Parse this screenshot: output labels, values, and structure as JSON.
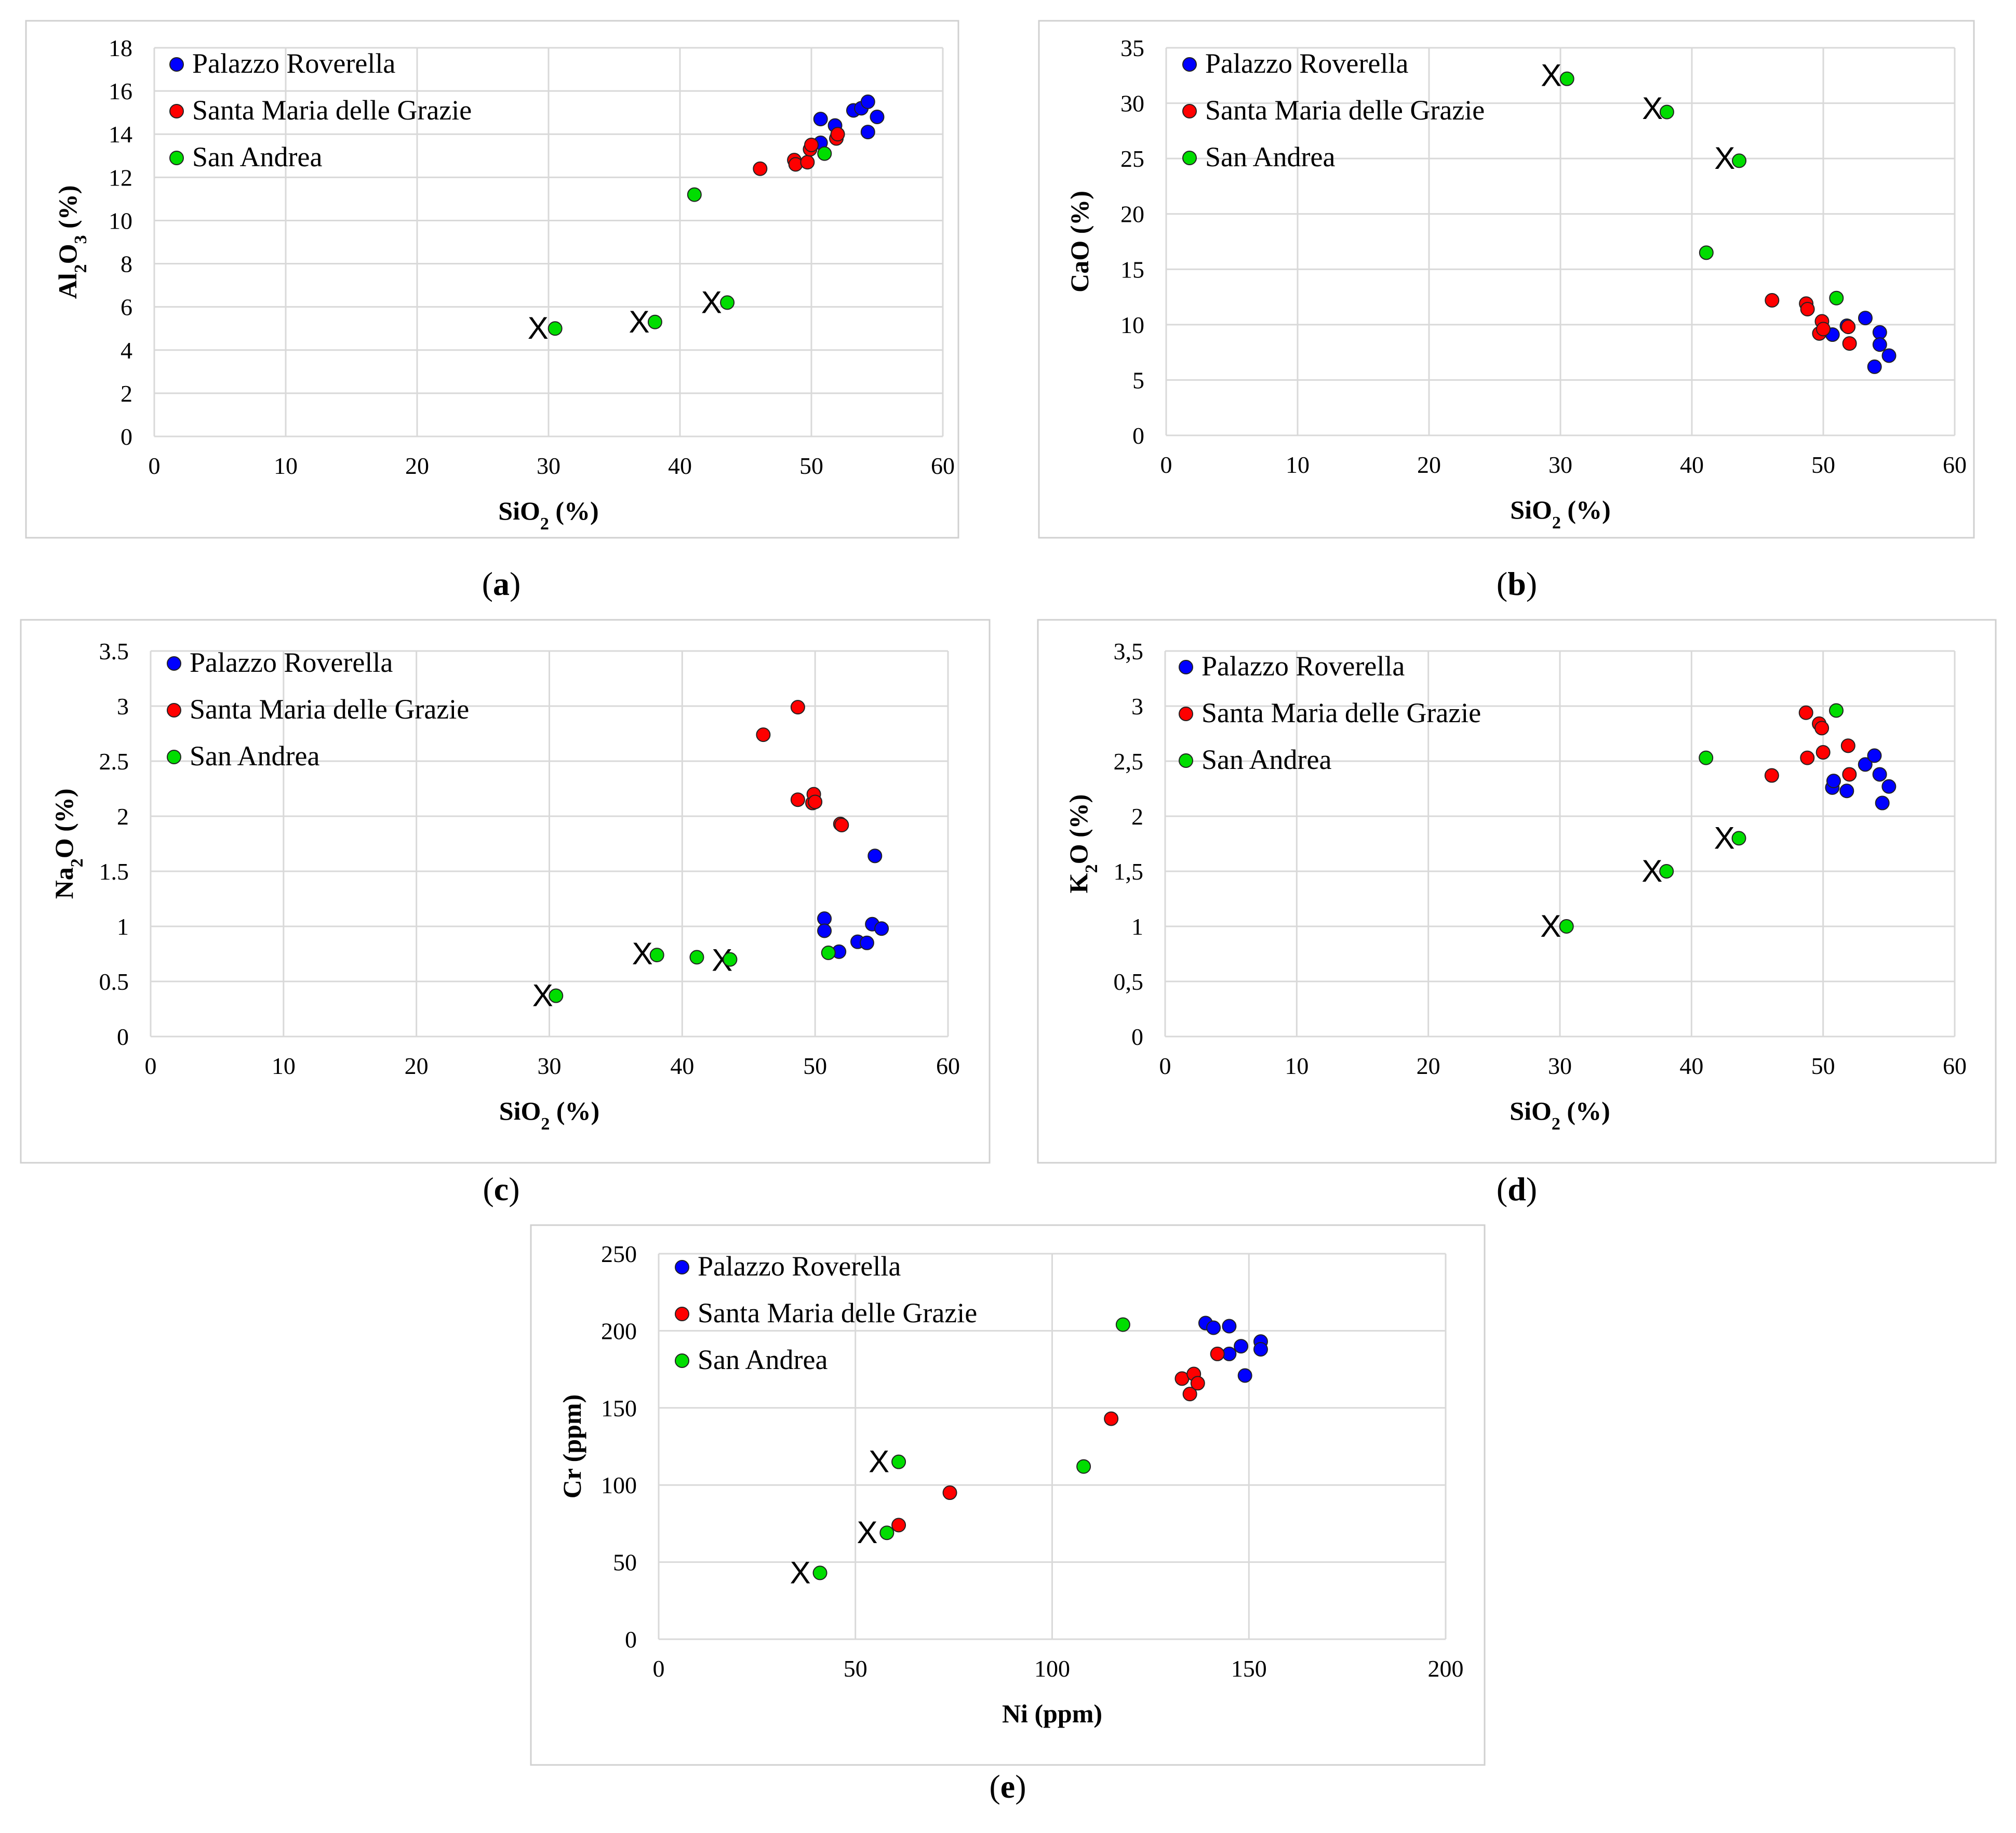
{
  "series_colors": {
    "Palazzo Roverella": "#0000ff",
    "Santa Maria delle Grazie": "#ff0000",
    "San Andrea": "#00dd00"
  },
  "chart_data": [
    {
      "type": "scatter",
      "caption_letter": "a",
      "xlabel": "SiO",
      "xlabel_sub": "2",
      "xlabel_tail": " (%)",
      "ylabel_parts": [
        [
          "Al",
          false
        ],
        [
          "2",
          true
        ],
        [
          "O",
          false
        ],
        [
          "3",
          true
        ],
        [
          " (%)",
          false
        ]
      ],
      "xlim": [
        0,
        60
      ],
      "ylim": [
        0,
        18
      ],
      "xticks": [
        "0",
        "10",
        "20",
        "30",
        "40",
        "50",
        "60"
      ],
      "yticks": [
        "0",
        "2",
        "4",
        "6",
        "8",
        "10",
        "12",
        "14",
        "16",
        "18"
      ],
      "legend": [
        "Palazzo Roverella",
        "Santa Maria delle Grazie",
        "San Andrea"
      ],
      "series": [
        {
          "name": "Palazzo Roverella",
          "points": [
            [
              50.7,
              14.7
            ],
            [
              50.7,
              13.6
            ],
            [
              51.8,
              14.4
            ],
            [
              53.2,
              15.1
            ],
            [
              53.8,
              15.2
            ],
            [
              54.3,
              15.5
            ],
            [
              54.3,
              14.1
            ],
            [
              55.0,
              14.8
            ]
          ]
        },
        {
          "name": "Santa Maria delle Grazie",
          "points": [
            [
              46.1,
              12.4
            ],
            [
              48.7,
              12.8
            ],
            [
              48.8,
              12.6
            ],
            [
              49.7,
              12.7
            ],
            [
              49.9,
              13.3
            ],
            [
              50.0,
              13.5
            ],
            [
              51.9,
              13.8
            ],
            [
              52.0,
              14.0
            ]
          ]
        },
        {
          "name": "San Andrea",
          "points": [
            [
              30.5,
              5.0
            ],
            [
              38.1,
              5.3
            ],
            [
              41.1,
              11.2
            ],
            [
              43.6,
              6.2
            ],
            [
              51.0,
              13.1
            ]
          ]
        }
      ],
      "markers": [
        {
          "label": "X",
          "x": 29.2,
          "y": 5.0
        },
        {
          "label": "X",
          "x": 36.9,
          "y": 5.3
        },
        {
          "label": "X",
          "x": 42.4,
          "y": 6.2
        }
      ]
    },
    {
      "type": "scatter",
      "caption_letter": "b",
      "xlabel": "SiO",
      "xlabel_sub": "2",
      "xlabel_tail": " (%)",
      "ylabel_parts": [
        [
          "CaO (%)",
          false
        ]
      ],
      "xlim": [
        0,
        60
      ],
      "ylim": [
        0,
        35
      ],
      "xticks": [
        "0",
        "10",
        "20",
        "30",
        "40",
        "50",
        "60"
      ],
      "yticks": [
        "0",
        "5",
        "10",
        "15",
        "20",
        "25",
        "30",
        "35"
      ],
      "legend": [
        "Palazzo Roverella",
        "Santa Maria delle Grazie",
        "San Andrea"
      ],
      "series": [
        {
          "name": "Palazzo Roverella",
          "points": [
            [
              50.7,
              9.1
            ],
            [
              51.8,
              9.9
            ],
            [
              53.2,
              10.6
            ],
            [
              54.3,
              9.3
            ],
            [
              54.3,
              8.2
            ],
            [
              55.0,
              7.2
            ],
            [
              53.9,
              6.2
            ]
          ]
        },
        {
          "name": "Santa Maria delle Grazie",
          "points": [
            [
              46.1,
              12.2
            ],
            [
              48.7,
              11.9
            ],
            [
              48.8,
              11.4
            ],
            [
              49.7,
              9.2
            ],
            [
              49.9,
              10.3
            ],
            [
              50.0,
              9.6
            ],
            [
              51.9,
              9.8
            ],
            [
              52.0,
              8.3
            ]
          ]
        },
        {
          "name": "San Andrea",
          "points": [
            [
              30.5,
              32.2
            ],
            [
              38.1,
              29.2
            ],
            [
              41.1,
              16.5
            ],
            [
              43.6,
              24.8
            ],
            [
              51.0,
              12.4
            ]
          ]
        }
      ],
      "markers": [
        {
          "label": "X",
          "x": 29.3,
          "y": 32.5
        },
        {
          "label": "X",
          "x": 37.0,
          "y": 29.5
        },
        {
          "label": "X",
          "x": 42.5,
          "y": 25.0
        }
      ]
    },
    {
      "type": "scatter",
      "caption_letter": "c",
      "xlabel": "SiO",
      "xlabel_sub": "2",
      "xlabel_tail": " (%)",
      "ylabel_parts": [
        [
          "Na",
          false
        ],
        [
          "2",
          true
        ],
        [
          "O (%)",
          false
        ]
      ],
      "xlim": [
        0,
        60
      ],
      "ylim": [
        0,
        3.5
      ],
      "xticks": [
        "0",
        "10",
        "20",
        "30",
        "40",
        "50",
        "60"
      ],
      "yticks": [
        "0",
        "0.5",
        "1",
        "1.5",
        "2",
        "2.5",
        "3",
        "3.5"
      ],
      "legend": [
        "Palazzo Roverella",
        "Santa Maria delle Grazie",
        "San Andrea"
      ],
      "series": [
        {
          "name": "Palazzo Roverella",
          "points": [
            [
              50.7,
              1.07
            ],
            [
              50.7,
              0.96
            ],
            [
              51.8,
              0.77
            ],
            [
              53.2,
              0.86
            ],
            [
              53.9,
              0.85
            ],
            [
              54.3,
              1.02
            ],
            [
              54.5,
              1.64
            ],
            [
              55.0,
              0.98
            ]
          ]
        },
        {
          "name": "Santa Maria delle Grazie",
          "points": [
            [
              46.1,
              2.74
            ],
            [
              48.7,
              2.99
            ],
            [
              48.7,
              2.15
            ],
            [
              49.8,
              2.12
            ],
            [
              49.9,
              2.2
            ],
            [
              50.0,
              2.13
            ],
            [
              51.9,
              1.93
            ],
            [
              52.0,
              1.92
            ]
          ]
        },
        {
          "name": "San Andrea",
          "points": [
            [
              30.5,
              0.37
            ],
            [
              38.1,
              0.74
            ],
            [
              41.1,
              0.72
            ],
            [
              43.6,
              0.7
            ],
            [
              51.0,
              0.76
            ]
          ]
        }
      ],
      "markers": [
        {
          "label": "X",
          "x": 29.5,
          "y": 0.37
        },
        {
          "label": "X",
          "x": 37.0,
          "y": 0.75
        },
        {
          "label": "X",
          "x": 43.0,
          "y": 0.69
        }
      ]
    },
    {
      "type": "scatter",
      "caption_letter": "d",
      "xlabel": "SiO",
      "xlabel_sub": "2",
      "xlabel_tail": " (%)",
      "ylabel_parts": [
        [
          "K",
          false
        ],
        [
          "2",
          true
        ],
        [
          "O (%)",
          false
        ]
      ],
      "xlim": [
        0,
        60
      ],
      "ylim": [
        0,
        3.5
      ],
      "xticks": [
        "0",
        "10",
        "20",
        "30",
        "40",
        "50",
        "60"
      ],
      "yticks": [
        "0",
        "0,5",
        "1",
        "1,5",
        "2",
        "2,5",
        "3",
        "3,5"
      ],
      "legend": [
        "Palazzo Roverella",
        "Santa Maria delle Grazie",
        "San Andrea"
      ],
      "series": [
        {
          "name": "Palazzo Roverella",
          "points": [
            [
              50.7,
              2.26
            ],
            [
              50.8,
              2.32
            ],
            [
              51.8,
              2.23
            ],
            [
              53.2,
              2.47
            ],
            [
              53.9,
              2.55
            ],
            [
              54.3,
              2.38
            ],
            [
              54.5,
              2.12
            ],
            [
              55.0,
              2.27
            ]
          ]
        },
        {
          "name": "Santa Maria delle Grazie",
          "points": [
            [
              46.1,
              2.37
            ],
            [
              48.7,
              2.94
            ],
            [
              48.8,
              2.53
            ],
            [
              49.7,
              2.84
            ],
            [
              49.9,
              2.8
            ],
            [
              50.0,
              2.58
            ],
            [
              51.9,
              2.64
            ],
            [
              52.0,
              2.38
            ]
          ]
        },
        {
          "name": "San Andrea",
          "points": [
            [
              30.5,
              1.0
            ],
            [
              38.1,
              1.5
            ],
            [
              41.1,
              2.53
            ],
            [
              43.6,
              1.8
            ],
            [
              51.0,
              2.96
            ]
          ]
        }
      ],
      "markers": [
        {
          "label": "X",
          "x": 29.3,
          "y": 1.0
        },
        {
          "label": "X",
          "x": 37.0,
          "y": 1.5
        },
        {
          "label": "X",
          "x": 42.5,
          "y": 1.8
        }
      ]
    },
    {
      "type": "scatter",
      "caption_letter": "e",
      "xlabel": "Ni (ppm)",
      "xlabel_sub": "",
      "xlabel_tail": "",
      "ylabel_parts": [
        [
          "Cr (ppm)",
          false
        ]
      ],
      "xlim": [
        0,
        200
      ],
      "ylim": [
        0,
        250
      ],
      "xticks": [
        "0",
        "50",
        "100",
        "150",
        "200"
      ],
      "yticks": [
        "0",
        "50",
        "100",
        "150",
        "200",
        "250"
      ],
      "legend": [
        "Palazzo Roverella",
        "Santa Maria delle Grazie",
        "San Andrea"
      ],
      "series": [
        {
          "name": "Palazzo Roverella",
          "points": [
            [
              139,
              205
            ],
            [
              141,
              202
            ],
            [
              145,
              203
            ],
            [
              145,
              185
            ],
            [
              148,
              190
            ],
            [
              149,
              171
            ],
            [
              153,
              193
            ],
            [
              153,
              188
            ]
          ]
        },
        {
          "name": "Santa Maria delle Grazie",
          "points": [
            [
              61,
              74
            ],
            [
              74,
              95
            ],
            [
              115,
              143
            ],
            [
              133,
              169
            ],
            [
              135,
              159
            ],
            [
              136,
              172
            ],
            [
              137,
              166
            ],
            [
              142,
              185
            ]
          ]
        },
        {
          "name": "San Andrea",
          "points": [
            [
              41,
              43
            ],
            [
              58,
              69
            ],
            [
              61,
              115
            ],
            [
              108,
              112
            ],
            [
              118,
              204
            ]
          ]
        }
      ],
      "markers": [
        {
          "label": "X",
          "x": 36,
          "y": 43
        },
        {
          "label": "X",
          "x": 53,
          "y": 69
        },
        {
          "label": "X",
          "x": 56,
          "y": 115
        }
      ]
    }
  ]
}
